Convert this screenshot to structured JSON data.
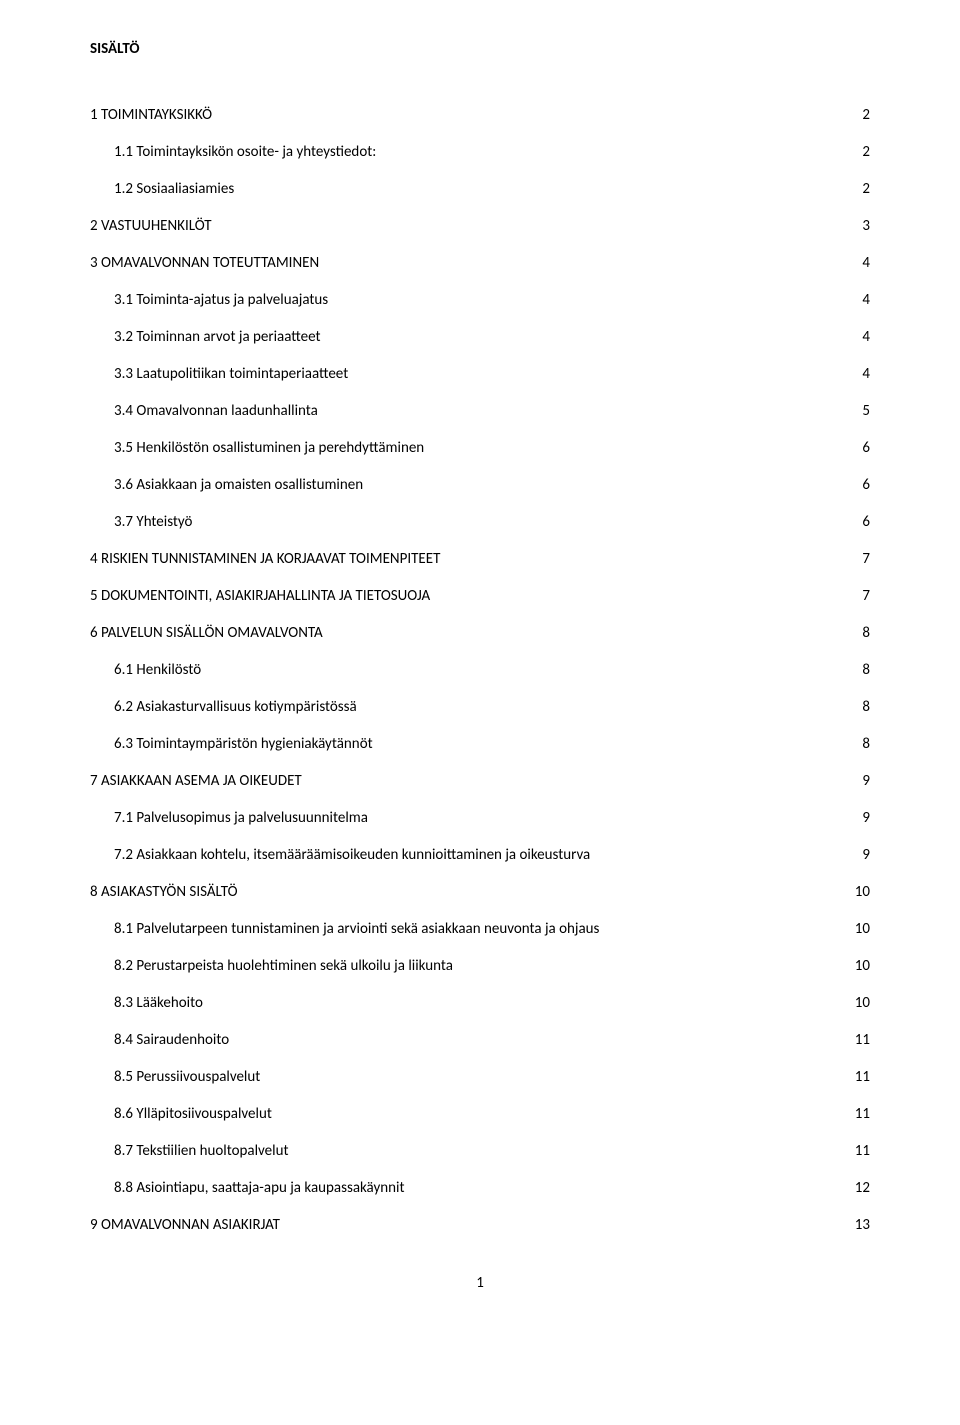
{
  "title": "SISÄLTÖ",
  "page_number": "1",
  "toc": [
    {
      "level": 1,
      "label": "1 TOIMINTAYKSIKKÖ",
      "page": "2"
    },
    {
      "level": 2,
      "label": "1.1 Toimintayksikön osoite- ja yhteystiedot:",
      "page": "2"
    },
    {
      "level": 2,
      "label": "1.2 Sosiaaliasiamies",
      "page": "2"
    },
    {
      "level": 1,
      "label": "2 VASTUUHENKILÖT",
      "page": "3"
    },
    {
      "level": 1,
      "label": "3 OMAVALVONNAN TOTEUTTAMINEN",
      "page": "4"
    },
    {
      "level": 2,
      "label": "3.1 Toiminta-ajatus ja palveluajatus",
      "page": "4"
    },
    {
      "level": 2,
      "label": "3.2 Toiminnan arvot ja periaatteet",
      "page": "4"
    },
    {
      "level": 2,
      "label": "3.3 Laatupolitiikan toimintaperiaatteet",
      "page": "4"
    },
    {
      "level": 2,
      "label": "3.4 Omavalvonnan laadunhallinta",
      "page": "5"
    },
    {
      "level": 2,
      "label": "3.5 Henkilöstön osallistuminen ja perehdyttäminen",
      "page": "6"
    },
    {
      "level": 2,
      "label": "3.6 Asiakkaan ja omaisten osallistuminen",
      "page": "6"
    },
    {
      "level": 2,
      "label": "3.7 Yhteistyö",
      "page": "6"
    },
    {
      "level": 1,
      "label": "4 RISKIEN TUNNISTAMINEN JA KORJAAVAT TOIMENPITEET",
      "page": "7"
    },
    {
      "level": 1,
      "label": "5 DOKUMENTOINTI, ASIAKIRJAHALLINTA JA TIETOSUOJA",
      "page": "7"
    },
    {
      "level": 1,
      "label": "6 PALVELUN SISÄLLÖN OMAVALVONTA",
      "page": "8"
    },
    {
      "level": 2,
      "label": "6.1 Henkilöstö",
      "page": "8"
    },
    {
      "level": 2,
      "label": "6.2 Asiakasturvallisuus kotiympäristössä",
      "page": "8"
    },
    {
      "level": 2,
      "label": "6.3 Toimintaympäristön hygieniakäytännöt",
      "page": "8"
    },
    {
      "level": 1,
      "label": "7 ASIAKKAAN ASEMA JA OIKEUDET",
      "page": "9"
    },
    {
      "level": 2,
      "label": "7.1 Palvelusopimus ja palvelusuunnitelma",
      "page": "9"
    },
    {
      "level": 2,
      "label": "7.2 Asiakkaan kohtelu, itsemääräämisoikeuden kunnioittaminen ja oikeusturva",
      "page": "9"
    },
    {
      "level": 1,
      "label": "8 ASIAKASTYÖN SISÄLTÖ",
      "page": "10"
    },
    {
      "level": 2,
      "label": "8.1 Palvelutarpeen tunnistaminen ja arviointi sekä asiakkaan neuvonta ja ohjaus",
      "page": "10"
    },
    {
      "level": 2,
      "label": "8.2 Perustarpeista huolehtiminen sekä ulkoilu ja liikunta",
      "page": "10"
    },
    {
      "level": 2,
      "label": "8.3 Lääkehoito",
      "page": "10"
    },
    {
      "level": 2,
      "label": "8.4 Sairaudenhoito",
      "page": "11"
    },
    {
      "level": 2,
      "label": "8.5 Perussiivouspalvelut",
      "page": "11"
    },
    {
      "level": 2,
      "label": "8.6 Ylläpitosiivouspalvelut",
      "page": "11"
    },
    {
      "level": 2,
      "label": "8.7 Tekstiilien huoltopalvelut",
      "page": "11"
    },
    {
      "level": 2,
      "label": "8.8 Asiointiapu, saattaja-apu ja kaupassakäynnit",
      "page": "12"
    },
    {
      "level": 1,
      "label": "9 OMAVALVONNAN ASIAKIRJAT",
      "page": "13"
    }
  ]
}
